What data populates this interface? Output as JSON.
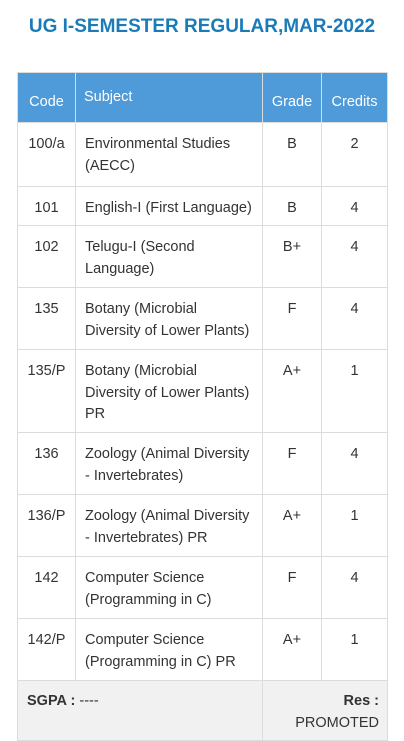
{
  "header": {
    "title": "UG I-SEMESTER REGULAR,MAR-2022"
  },
  "table": {
    "columns": [
      "Code",
      "Subject",
      "Grade",
      "Credits"
    ],
    "rows": [
      [
        "100/a",
        "Environmental Studies (AECC)",
        "B",
        2
      ],
      [
        "101",
        "English-I (First Language)",
        "B",
        4
      ],
      [
        "102",
        "Telugu-I (Second Language)",
        "B+",
        4
      ],
      [
        "135",
        "Botany (Microbial Diversity of Lower Plants)",
        "F",
        4
      ],
      [
        "135/P",
        "Botany (Microbial Diversity of Lower Plants) PR",
        "A+",
        1
      ],
      [
        "136",
        "Zoology (Animal Diversity - Invertebrates)",
        "F",
        4
      ],
      [
        "136/P",
        "Zoology (Animal Diversity - Invertebrates) PR",
        "A+",
        1
      ],
      [
        "142",
        "Computer Science (Programming in C)",
        "F",
        4
      ],
      [
        "142/P",
        "Computer Science (Programming in C) PR",
        "A+",
        1
      ]
    ]
  },
  "footer": {
    "sgpa_label": "SGPA :",
    "sgpa": "----",
    "result_label": "Res :",
    "result": "PROMOTED"
  }
}
